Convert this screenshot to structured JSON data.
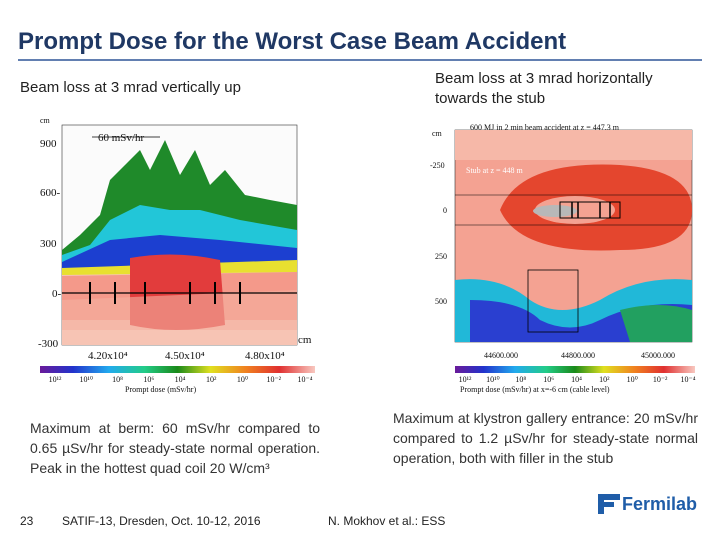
{
  "title": "Prompt Dose for the Worst Case Beam Accident",
  "left_panel": {
    "heading": "Beam loss at 3 mrad vertically up",
    "image": {
      "y_unit": "cm",
      "y_labels": [
        "900",
        "600-",
        "300",
        "0-",
        "-300"
      ],
      "annotation": "60 mSv/hr",
      "x_unit": "cm",
      "x_labels": [
        "4.20x10⁴",
        "4.50x10⁴",
        "4.80x10⁴"
      ],
      "scale_labels": [
        "10¹²",
        "10¹⁰",
        "10⁸",
        "10⁶",
        "10⁴",
        "10²",
        "10⁰",
        "10⁻²",
        "10⁻⁴"
      ],
      "scale_title": "Prompt dose (mSv/hr)"
    },
    "caption": "Maximum at berm: 60 mSv/hr compared to 0.65 µSv/hr for steady-state normal operation. Peak in the hottest quad coil 20 W/cm³"
  },
  "right_panel": {
    "heading": "Beam loss at 3 mrad horizontally towards the stub",
    "image": {
      "header": "600 MJ in 2 min beam accident at z = 447.3 m",
      "stub_label": "Stub at z = 448 m",
      "y_unit": "cm",
      "y_labels": [
        "-250",
        "0",
        "250",
        "500"
      ],
      "x_labels": [
        "44600.000",
        "44800.000",
        "45000.000"
      ],
      "scale_labels": [
        "10¹²",
        "10¹⁰",
        "10⁸",
        "10⁶",
        "10⁴",
        "10²",
        "10⁰",
        "10⁻²",
        "10⁻⁴"
      ],
      "scale_title": "Prompt dose (mSv/hr) at x=-6 cm (cable level)"
    },
    "caption": "Maximum at klystron gallery entrance: 20 mSv/hr compared to 1.2 µSv/hr for steady-state normal operation, both with filler in the stub"
  },
  "footer": {
    "page": "23",
    "event": "SATIF-13, Dresden, Oct. 10-12, 2016",
    "author": "N. Mokhov et al.: ESS",
    "logo": "Fermilab"
  }
}
